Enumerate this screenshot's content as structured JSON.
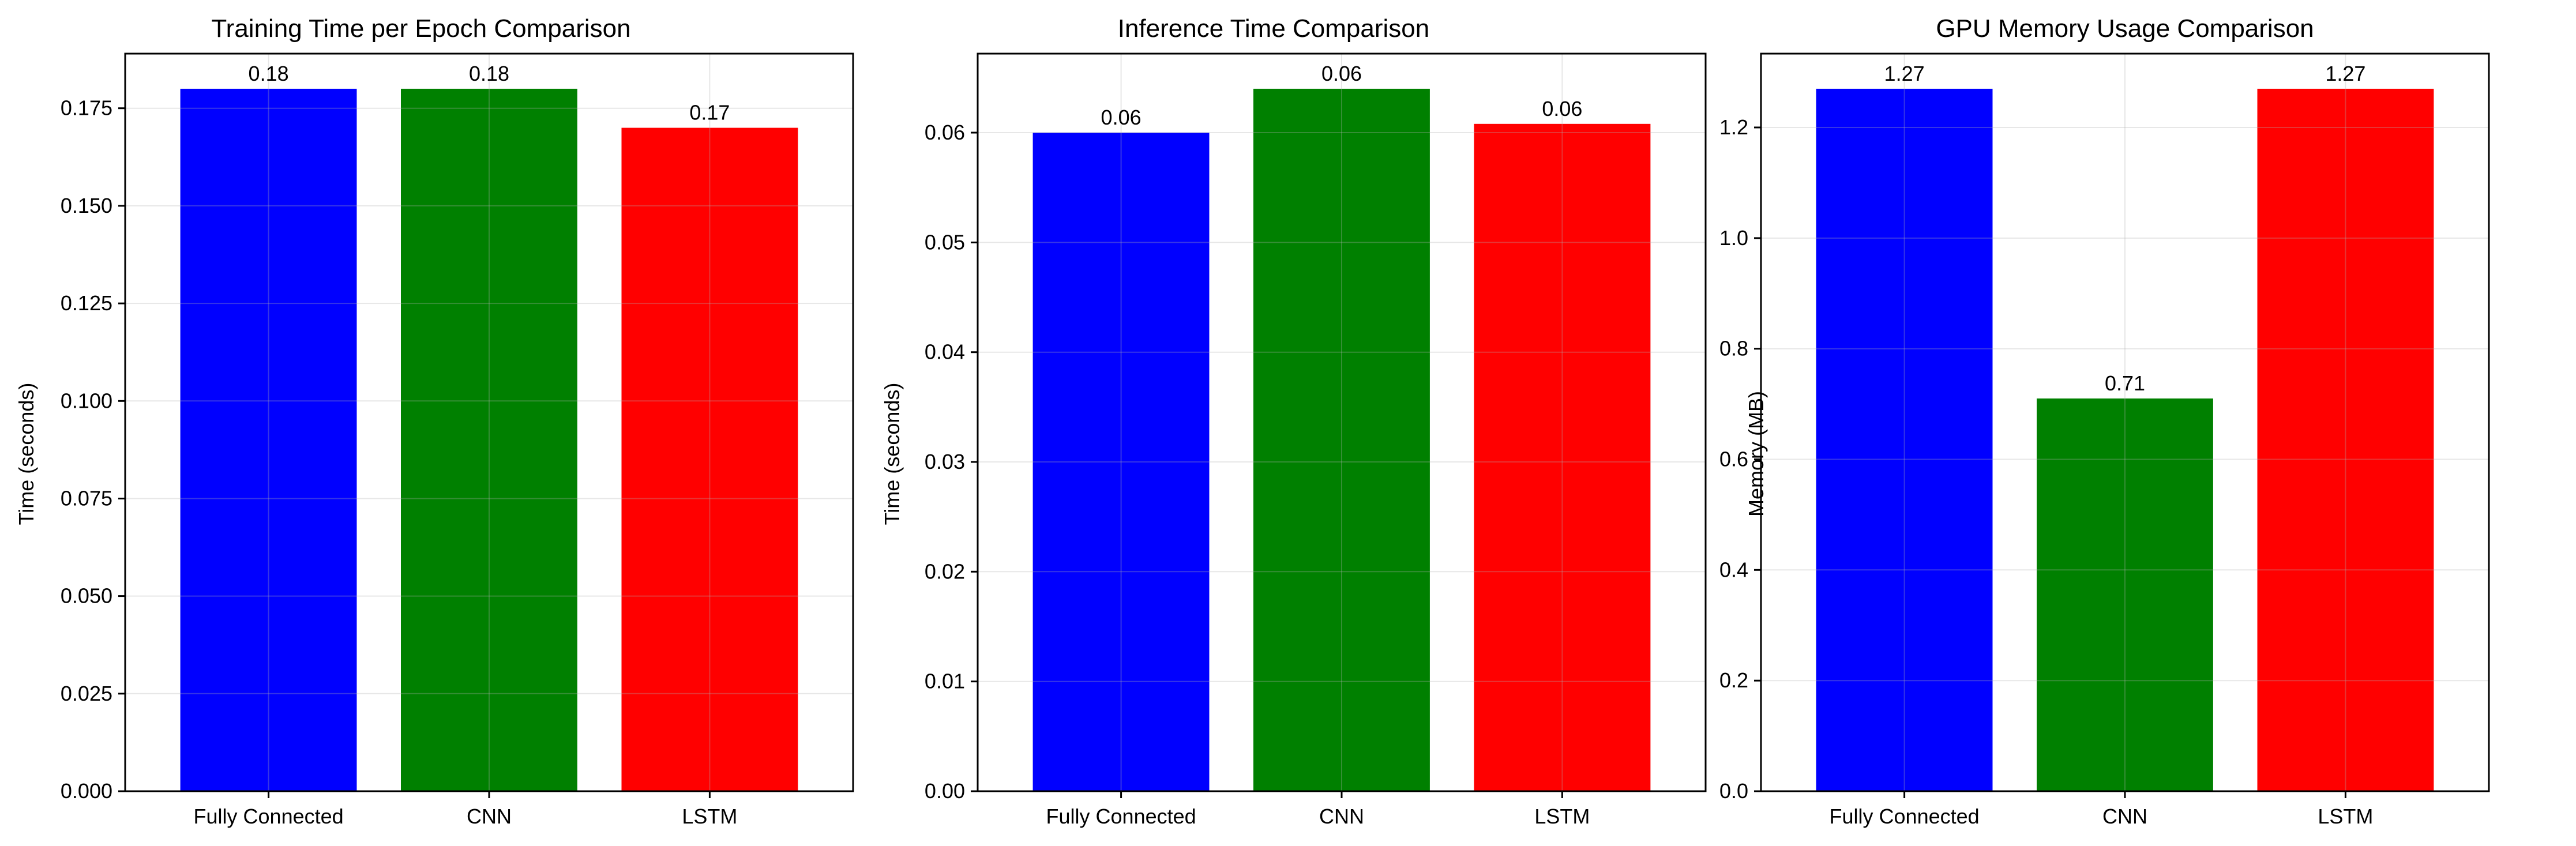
{
  "chart_data": [
    {
      "type": "bar",
      "title": "Training Time per Epoch Comparison",
      "xlabel": "",
      "ylabel": "Time (seconds)",
      "categories": [
        "Fully Connected",
        "CNN",
        "LSTM"
      ],
      "values": [
        0.18,
        0.18,
        0.17
      ],
      "data_labels": [
        "0.18",
        "0.18",
        "0.17"
      ],
      "colors": [
        "#0000ff",
        "#008000",
        "#ff0000"
      ],
      "ylim": [
        0,
        0.189
      ],
      "yticks": [
        0.0,
        0.025,
        0.05,
        0.075,
        0.1,
        0.125,
        0.15,
        0.175
      ],
      "ytick_labels": [
        "0.000",
        "0.025",
        "0.050",
        "0.075",
        "0.100",
        "0.125",
        "0.150",
        "0.175"
      ],
      "grid": true
    },
    {
      "type": "bar",
      "title": "Inference Time Comparison",
      "xlabel": "",
      "ylabel": "Time (seconds)",
      "categories": [
        "Fully Connected",
        "CNN",
        "LSTM"
      ],
      "values": [
        0.06,
        0.064,
        0.0608
      ],
      "data_labels": [
        "0.06",
        "0.06",
        "0.06"
      ],
      "colors": [
        "#0000ff",
        "#008000",
        "#ff0000"
      ],
      "ylim": [
        0,
        0.0672
      ],
      "yticks": [
        0.0,
        0.01,
        0.02,
        0.03,
        0.04,
        0.05,
        0.06
      ],
      "ytick_labels": [
        "0.00",
        "0.01",
        "0.02",
        "0.03",
        "0.04",
        "0.05",
        "0.06"
      ],
      "grid": true
    },
    {
      "type": "bar",
      "title": "GPU Memory Usage Comparison",
      "xlabel": "",
      "ylabel": "Memory (MB)",
      "categories": [
        "Fully Connected",
        "CNN",
        "LSTM"
      ],
      "values": [
        1.27,
        0.71,
        1.27
      ],
      "data_labels": [
        "1.27",
        "0.71",
        "1.27"
      ],
      "colors": [
        "#0000ff",
        "#008000",
        "#ff0000"
      ],
      "ylim": [
        0,
        1.3335
      ],
      "yticks": [
        0.0,
        0.2,
        0.4,
        0.6,
        0.8,
        1.0,
        1.2
      ],
      "ytick_labels": [
        "0.0",
        "0.2",
        "0.4",
        "0.6",
        "0.8",
        "1.0",
        "1.2"
      ],
      "grid": true
    }
  ]
}
